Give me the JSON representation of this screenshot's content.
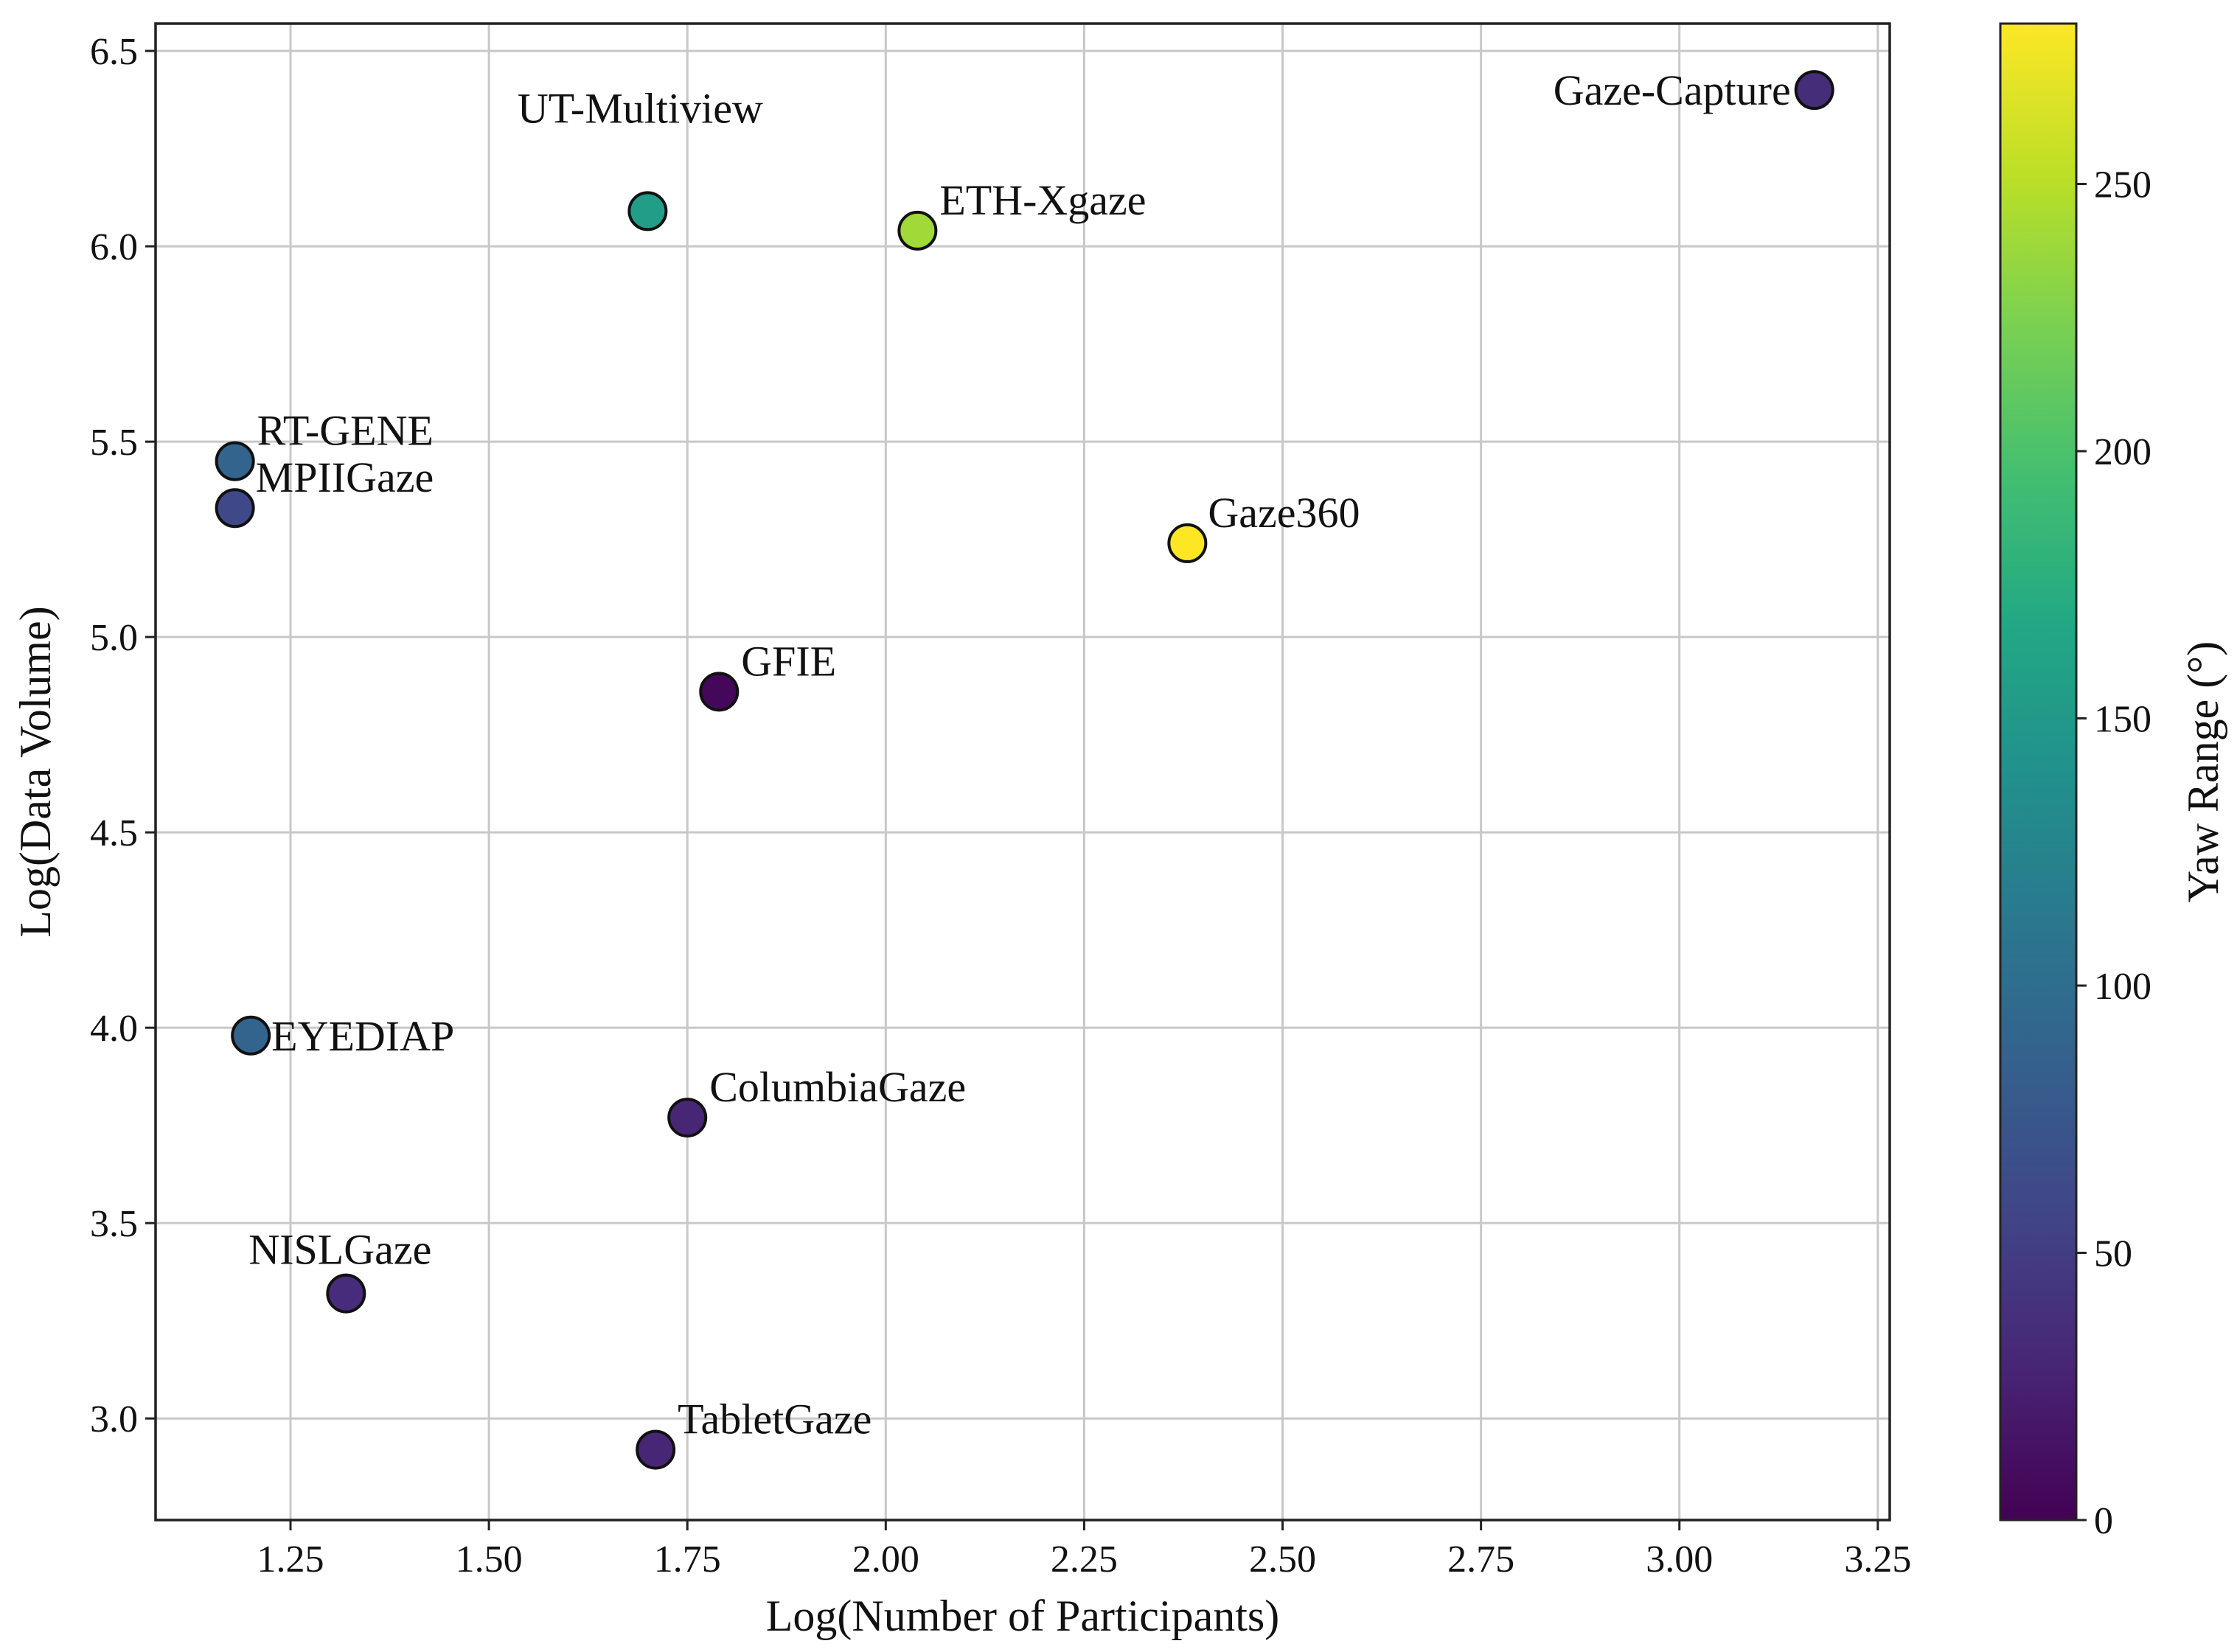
{
  "chart_data": {
    "type": "scatter",
    "xlabel": "Log(Number of Participants)",
    "ylabel": "Log(Data Volume)",
    "xlim": [
      1.08,
      3.265
    ],
    "ylim": [
      2.74,
      6.57
    ],
    "xticks": [
      1.25,
      1.5,
      1.75,
      2.0,
      2.25,
      2.5,
      2.75,
      3.0,
      3.25
    ],
    "xtick_labels": [
      "1.25",
      "1.50",
      "1.75",
      "2.00",
      "2.25",
      "2.50",
      "2.75",
      "3.00",
      "3.25"
    ],
    "yticks": [
      3.0,
      3.5,
      4.0,
      4.5,
      5.0,
      5.5,
      6.0,
      6.5
    ],
    "ytick_labels": [
      "3.0",
      "3.5",
      "4.0",
      "4.5",
      "5.0",
      "5.5",
      "6.0",
      "6.5"
    ],
    "grid": true,
    "colorbar": {
      "label": "Yaw Range (°)",
      "colormap": "viridis",
      "range": [
        0,
        280
      ],
      "ticks": [
        0,
        50,
        100,
        150,
        200,
        250
      ],
      "tick_labels": [
        "0",
        "50",
        "100",
        "150",
        "200",
        "250"
      ]
    },
    "points": [
      {
        "label": "Gaze-Capture",
        "x": 3.17,
        "y": 6.4,
        "yaw": 36,
        "label_anchor": "left"
      },
      {
        "label": "UT-Multiview",
        "x": 1.7,
        "y": 6.09,
        "yaw": 155,
        "label_anchor": "above"
      },
      {
        "label": "ETH-Xgaze",
        "x": 2.04,
        "y": 6.04,
        "yaw": 240,
        "label_anchor": "above-right"
      },
      {
        "label": "RT-GENE",
        "x": 1.18,
        "y": 5.45,
        "yaw": 90,
        "label_anchor": "above-right"
      },
      {
        "label": "MPIIGaze",
        "x": 1.18,
        "y": 5.33,
        "yaw": 60,
        "label_anchor": "right"
      },
      {
        "label": "Gaze360",
        "x": 2.38,
        "y": 5.24,
        "yaw": 280,
        "label_anchor": "right"
      },
      {
        "label": "GFIE",
        "x": 1.79,
        "y": 4.86,
        "yaw": 5,
        "label_anchor": "above-right"
      },
      {
        "label": "EYEDIAP",
        "x": 1.2,
        "y": 3.98,
        "yaw": 90,
        "label_anchor": "right"
      },
      {
        "label": "ColumbiaGaze",
        "x": 1.75,
        "y": 3.77,
        "yaw": 30,
        "label_anchor": "above-right"
      },
      {
        "label": "NISLGaze",
        "x": 1.32,
        "y": 3.32,
        "yaw": 35,
        "label_anchor": "above"
      },
      {
        "label": "TabletGaze",
        "x": 1.71,
        "y": 2.92,
        "yaw": 30,
        "label_anchor": "above-right"
      }
    ]
  }
}
